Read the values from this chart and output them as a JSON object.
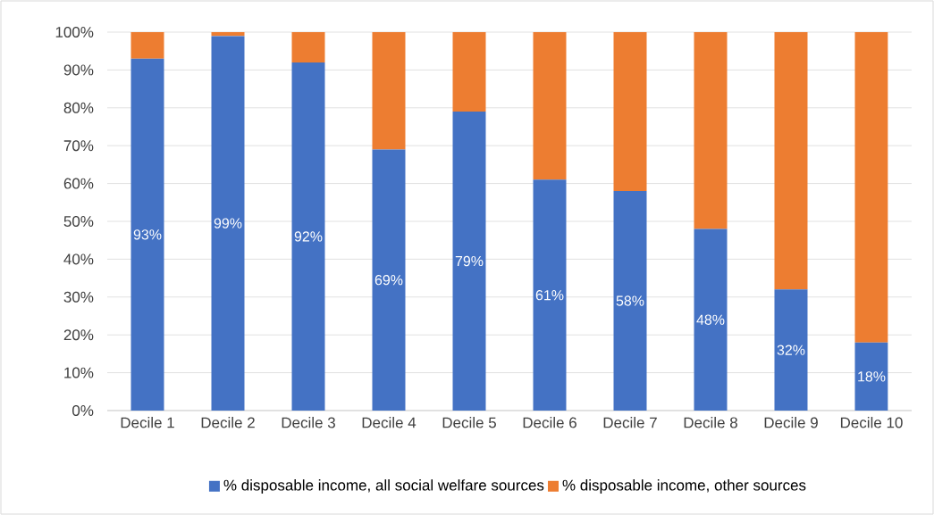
{
  "chart_data": {
    "type": "bar",
    "stacked": true,
    "categories": [
      "Decile 1",
      "Decile 2",
      "Decile 3",
      "Decile 4",
      "Decile 5",
      "Decile 6",
      "Decile 7",
      "Decile 8",
      "Decile 9",
      "Decile 10"
    ],
    "series": [
      {
        "name": "% disposable income, all social welfare sources",
        "color": "#4472c4",
        "values": [
          93,
          99,
          92,
          69,
          79,
          61,
          58,
          48,
          32,
          18
        ],
        "value_labels": [
          "93%",
          "99%",
          "92%",
          "69%",
          "79%",
          "61%",
          "58%",
          "48%",
          "32%",
          "18%"
        ]
      },
      {
        "name": "% disposable income, other sources",
        "color": "#ed7d31",
        "values": [
          7,
          1,
          8,
          31,
          21,
          39,
          42,
          52,
          68,
          82
        ]
      }
    ],
    "ylim": [
      0,
      100
    ],
    "yticks": [
      {
        "value": 0,
        "label": "0%"
      },
      {
        "value": 10,
        "label": "10%"
      },
      {
        "value": 20,
        "label": "20%"
      },
      {
        "value": 30,
        "label": "30%"
      },
      {
        "value": 40,
        "label": "40%"
      },
      {
        "value": 50,
        "label": "50%"
      },
      {
        "value": 60,
        "label": "60%"
      },
      {
        "value": 70,
        "label": "70%"
      },
      {
        "value": 80,
        "label": "80%"
      },
      {
        "value": 90,
        "label": "90%"
      },
      {
        "value": 100,
        "label": "100%"
      }
    ],
    "grid": "y",
    "legend": "bottom"
  }
}
